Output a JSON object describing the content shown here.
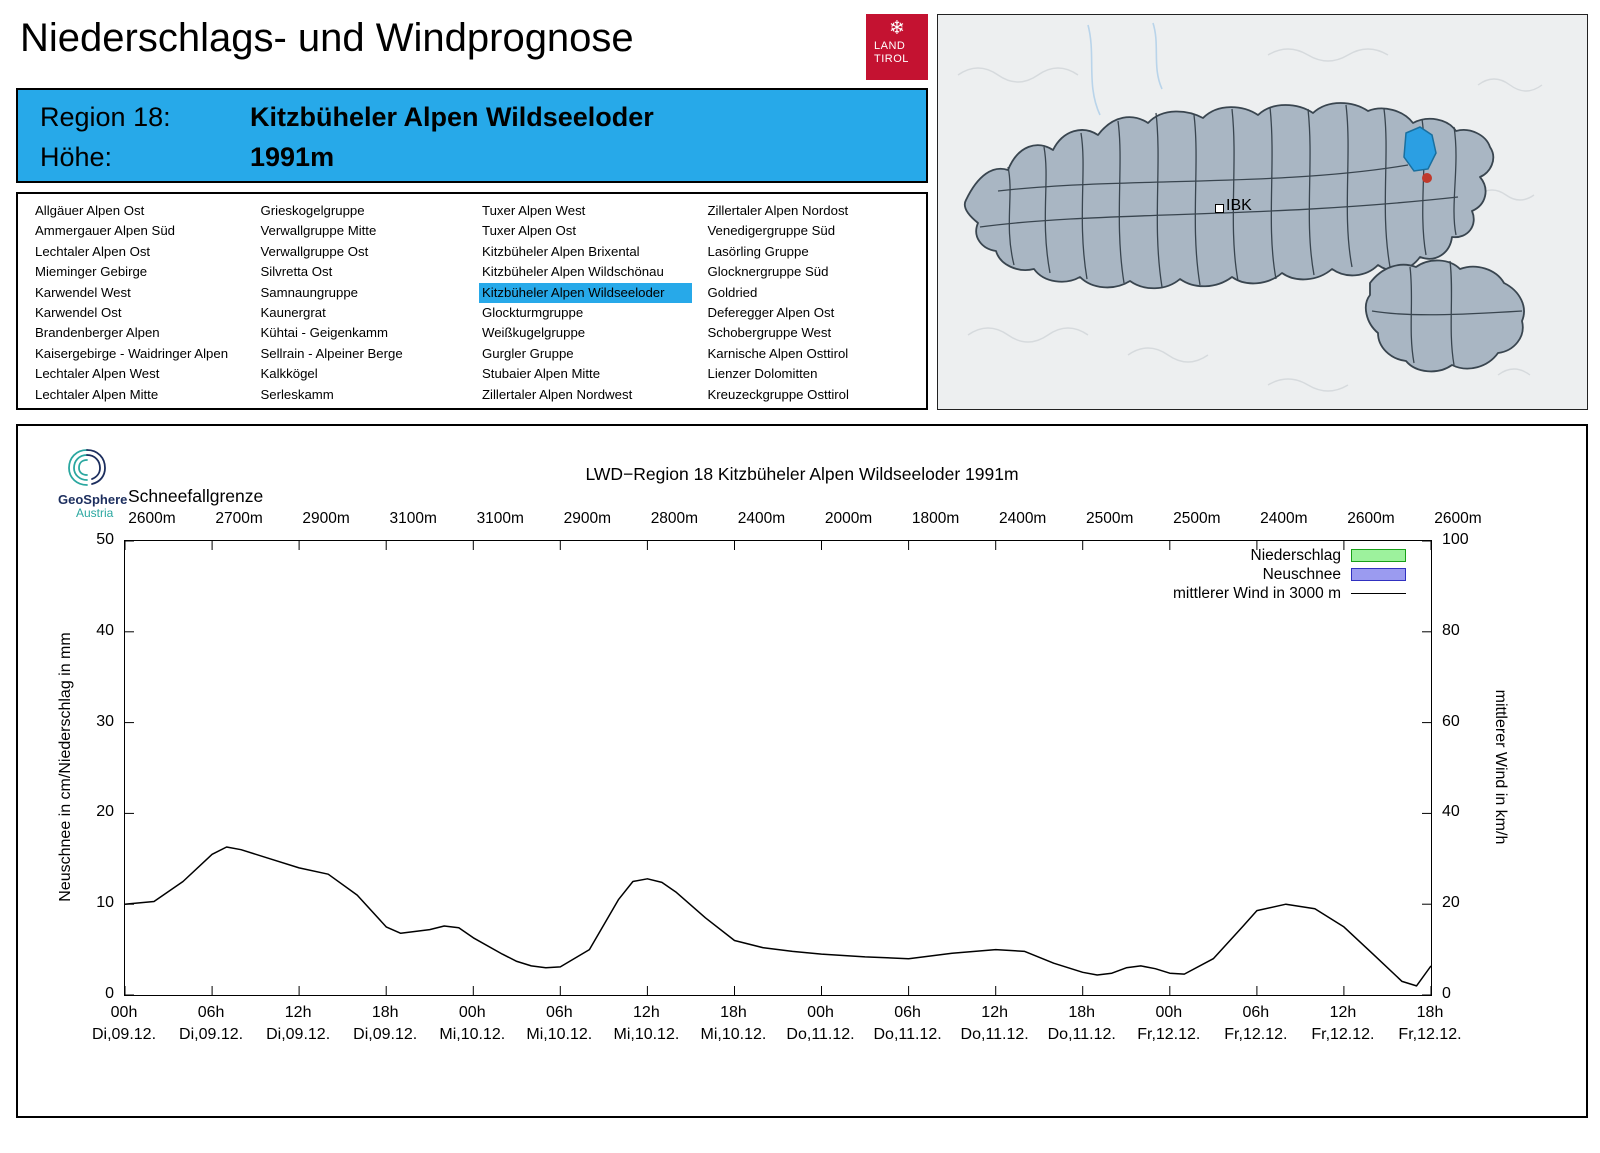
{
  "header": {
    "title": "Niederschlags- und Windprognose"
  },
  "logo": {
    "line1": "LAND",
    "line2": "TIROL",
    "snowflake": "❄",
    "bg": "#c41231"
  },
  "region_info": {
    "region_label": "Region 18:",
    "region_name": "Kitzbüheler Alpen Wildseeloder",
    "altitude_label": "Höhe:",
    "altitude_value": "1991m",
    "bg": "#27a9e9"
  },
  "map": {
    "ibk_label": "IBK",
    "land_fill": "#a9b6c3",
    "border_color": "#39454f",
    "selected_region_color": "#2b9fe3",
    "marker_color": "#c0392b"
  },
  "region_list": {
    "selected": "Kitzbüheler Alpen Wildseeloder",
    "highlight": "#27a9e9",
    "columns": [
      [
        "Allgäuer Alpen Ost",
        "Ammergauer Alpen Süd",
        "Lechtaler Alpen Ost",
        "Mieminger Gebirge",
        "Karwendel West",
        "Karwendel Ost",
        "Brandenberger Alpen",
        "Kaisergebirge - Waidringer Alpen",
        "Lechtaler Alpen West",
        "Lechtaler Alpen Mitte"
      ],
      [
        "Grieskogelgruppe",
        "Verwallgruppe Mitte",
        "Verwallgruppe Ost",
        "Silvretta Ost",
        "Samnaungruppe",
        "Kaunergrat",
        "Kühtai - Geigenkamm",
        "Sellrain - Alpeiner Berge",
        "Kalkkögel",
        "Serleskamm"
      ],
      [
        "Tuxer Alpen West",
        "Tuxer Alpen Ost",
        "Kitzbüheler Alpen Brixental",
        "Kitzbüheler Alpen Wildschönau",
        "Kitzbüheler Alpen Wildseeloder",
        "Glockturmgruppe",
        "Weißkugelgruppe",
        "Gurgler Gruppe",
        "Stubaier Alpen Mitte",
        "Zillertaler Alpen Nordwest"
      ],
      [
        "Zillertaler Alpen Nordost",
        "Venedigergruppe Süd",
        "Lasörling Gruppe",
        "Glocknergruppe Süd",
        "Goldried",
        "Deferegger Alpen Ost",
        "Schobergruppe West",
        "Karnische Alpen Osttirol",
        "Lienzer Dolomitten",
        "Kreuzeckgruppe Osttirol"
      ]
    ]
  },
  "chart": {
    "brand_name": "GeoSphere",
    "brand_sub": "Austria",
    "title": "LWD−Region 18 Kitzbüheler Alpen Wildseeloder 1991m",
    "snowline_label": "Schneefallgrenze",
    "snowline_values": [
      "2600m",
      "2700m",
      "2900m",
      "3100m",
      "3100m",
      "2900m",
      "2800m",
      "2400m",
      "2000m",
      "1800m",
      "2400m",
      "2500m",
      "2500m",
      "2400m",
      "2600m",
      "2600m"
    ],
    "y_left_label": "Neuschnee in cm/Niederschlag in mm",
    "y_right_label": "mittlerer Wind in km/h",
    "y_left_ticks": [
      "0",
      "10",
      "20",
      "30",
      "40",
      "50"
    ],
    "y_right_ticks": [
      "0",
      "20",
      "40",
      "60",
      "80",
      "100"
    ],
    "x_ticks": [
      {
        "time": "00h",
        "date": "Di,09.12."
      },
      {
        "time": "06h",
        "date": "Di,09.12."
      },
      {
        "time": "12h",
        "date": "Di,09.12."
      },
      {
        "time": "18h",
        "date": "Di,09.12."
      },
      {
        "time": "00h",
        "date": "Mi,10.12."
      },
      {
        "time": "06h",
        "date": "Mi,10.12."
      },
      {
        "time": "12h",
        "date": "Mi,10.12."
      },
      {
        "time": "18h",
        "date": "Mi,10.12."
      },
      {
        "time": "00h",
        "date": "Do,11.12."
      },
      {
        "time": "06h",
        "date": "Do,11.12."
      },
      {
        "time": "12h",
        "date": "Do,11.12."
      },
      {
        "time": "18h",
        "date": "Do,11.12."
      },
      {
        "time": "00h",
        "date": "Fr,12.12."
      },
      {
        "time": "06h",
        "date": "Fr,12.12."
      },
      {
        "time": "12h",
        "date": "Fr,12.12."
      },
      {
        "time": "18h",
        "date": "Fr,12.12."
      }
    ],
    "legend": [
      {
        "label": "Niederschlag",
        "type": "box",
        "fill": "#9df29d",
        "stroke": "#18a018"
      },
      {
        "label": "Neuschnee",
        "type": "box",
        "fill": "#9b9bf0",
        "stroke": "#3030c0"
      },
      {
        "label": "mittlerer Wind in 3000 m",
        "type": "line",
        "stroke": "#000000"
      }
    ]
  },
  "chart_data": {
    "type": "line",
    "title": "LWD−Region 18 Kitzbüheler Alpen Wildseeloder 1991m",
    "x_axis": {
      "unit": "Stunden ab Di,09.12. 00h",
      "range": [
        0,
        90
      ],
      "tick_step_h": 6,
      "tick_labels": [
        "00h Di,09.12.",
        "06h Di,09.12.",
        "12h Di,09.12.",
        "18h Di,09.12.",
        "00h Mi,10.12.",
        "06h Mi,10.12.",
        "12h Mi,10.12.",
        "18h Mi,10.12.",
        "00h Do,11.12.",
        "06h Do,11.12.",
        "12h Do,11.12.",
        "18h Do,11.12.",
        "00h Fr,12.12.",
        "06h Fr,12.12.",
        "12h Fr,12.12.",
        "18h Fr,12.12."
      ]
    },
    "y_left": {
      "label": "Neuschnee in cm/Niederschlag in mm",
      "range": [
        0,
        50
      ]
    },
    "y_right": {
      "label": "mittlerer Wind in km/h",
      "range": [
        0,
        100
      ]
    },
    "snowline_m": [
      2600,
      2700,
      2900,
      3100,
      3100,
      2900,
      2800,
      2400,
      2000,
      1800,
      2400,
      2500,
      2500,
      2400,
      2600,
      2600
    ],
    "grid": false,
    "legend_position": "top-right",
    "series": [
      {
        "name": "Niederschlag",
        "unit": "mm",
        "axis": "left",
        "points": []
      },
      {
        "name": "Neuschnee",
        "unit": "cm",
        "axis": "left",
        "points": []
      },
      {
        "name": "mittlerer Wind in 3000 m",
        "unit": "km/h",
        "axis": "right",
        "points": [
          [
            0,
            20
          ],
          [
            2,
            20.6
          ],
          [
            4,
            25
          ],
          [
            6,
            31
          ],
          [
            7,
            32.6
          ],
          [
            8,
            32
          ],
          [
            10,
            30
          ],
          [
            12,
            28
          ],
          [
            14,
            26.6
          ],
          [
            16,
            22
          ],
          [
            18,
            15
          ],
          [
            19,
            13.6
          ],
          [
            21,
            14.4
          ],
          [
            22,
            15.2
          ],
          [
            23,
            14.8
          ],
          [
            24,
            12.6
          ],
          [
            26,
            9
          ],
          [
            27,
            7.4
          ],
          [
            28,
            6.4
          ],
          [
            29,
            6
          ],
          [
            30,
            6.2
          ],
          [
            32,
            10
          ],
          [
            34,
            21
          ],
          [
            35,
            25
          ],
          [
            36,
            25.6
          ],
          [
            37,
            24.8
          ],
          [
            38,
            22.6
          ],
          [
            40,
            17
          ],
          [
            42,
            12
          ],
          [
            44,
            10.4
          ],
          [
            46,
            9.6
          ],
          [
            48,
            9
          ],
          [
            51,
            8.4
          ],
          [
            54,
            8
          ],
          [
            57,
            9.2
          ],
          [
            60,
            10
          ],
          [
            62,
            9.6
          ],
          [
            64,
            7
          ],
          [
            66,
            5
          ],
          [
            67,
            4.4
          ],
          [
            68,
            4.8
          ],
          [
            69,
            6
          ],
          [
            70,
            6.4
          ],
          [
            71,
            5.8
          ],
          [
            72,
            4.8
          ],
          [
            73,
            4.6
          ],
          [
            75,
            8
          ],
          [
            77,
            15
          ],
          [
            78,
            18.6
          ],
          [
            80,
            20
          ],
          [
            82,
            19
          ],
          [
            84,
            15
          ],
          [
            86,
            9
          ],
          [
            88,
            3
          ],
          [
            89,
            2
          ],
          [
            90,
            6.4
          ]
        ]
      }
    ]
  }
}
